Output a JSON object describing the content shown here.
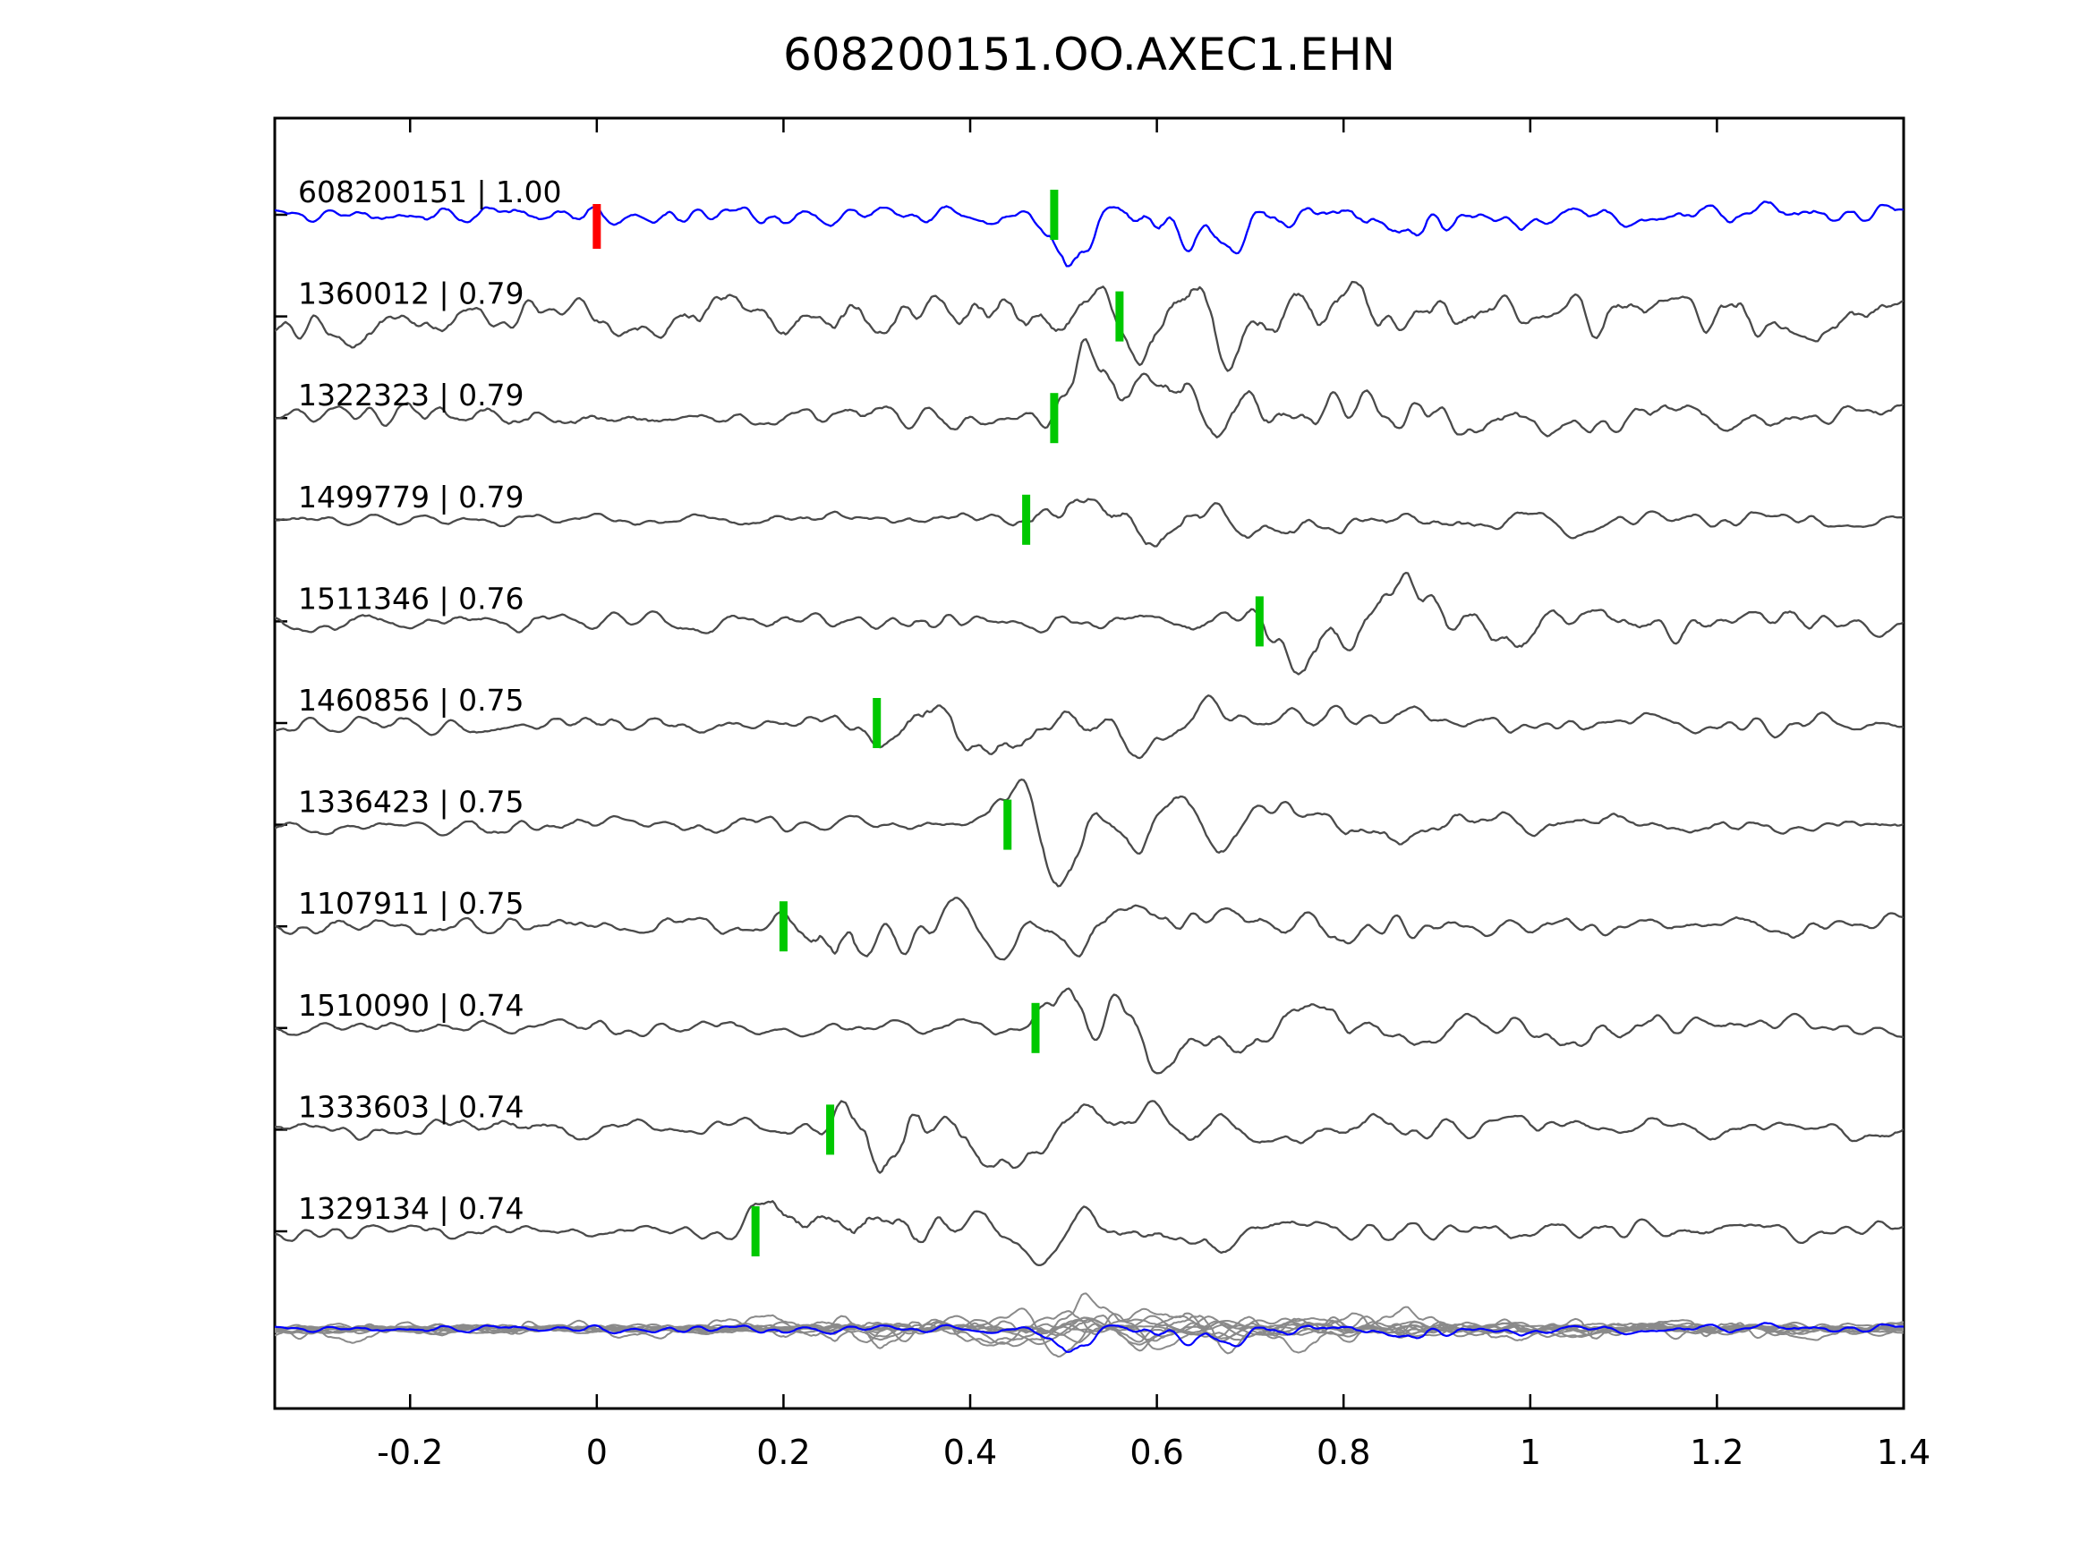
{
  "chart_data": {
    "type": "line",
    "subtype": "seismic-waveform-correlation-plot",
    "title": "608200151.OO.AXEC1.EHN",
    "xlabel": "",
    "ylabel": "",
    "xlim": [
      -0.345,
      1.4
    ],
    "x_ticks": [
      -0.2,
      0,
      0.2,
      0.4,
      0.6,
      0.8,
      1,
      1.2,
      1.4
    ],
    "x_tick_labels": [
      "-0.2",
      "0",
      "0.2",
      "0.4",
      "0.6",
      "0.8",
      "1",
      "1.2",
      "1.4"
    ],
    "grid": false,
    "legend": false,
    "colors": {
      "template_trace": "#0000ff",
      "match_trace": "#4a4a4a",
      "overlay_trace": "#8a8a8a",
      "pick_marker": "#00c800",
      "template_marker": "#ff0000",
      "axis": "#000000",
      "text": "#000000"
    },
    "traces": [
      {
        "id": "608200151",
        "score": "1.00",
        "label": "608200151 | 1.00",
        "pick": 0.49,
        "role": "template"
      },
      {
        "id": "1360012",
        "score": "0.79",
        "label": "1360012 | 0.79",
        "pick": 0.56,
        "role": "match"
      },
      {
        "id": "1322323",
        "score": "0.79",
        "label": "1322323 | 0.79",
        "pick": 0.49,
        "role": "match"
      },
      {
        "id": "1499779",
        "score": "0.79",
        "label": "1499779 | 0.79",
        "pick": 0.46,
        "role": "match"
      },
      {
        "id": "1511346",
        "score": "0.76",
        "label": "1511346 | 0.76",
        "pick": 0.71,
        "role": "match"
      },
      {
        "id": "1460856",
        "score": "0.75",
        "label": "1460856 | 0.75",
        "pick": 0.3,
        "role": "match"
      },
      {
        "id": "1336423",
        "score": "0.75",
        "label": "1336423 | 0.75",
        "pick": 0.44,
        "role": "match"
      },
      {
        "id": "1107911",
        "score": "0.75",
        "label": "1107911 | 0.75",
        "pick": 0.2,
        "role": "match"
      },
      {
        "id": "1510090",
        "score": "0.74",
        "label": "1510090 | 0.74",
        "pick": 0.47,
        "role": "match"
      },
      {
        "id": "1333603",
        "score": "0.74",
        "label": "1333603 | 0.74",
        "pick": 0.25,
        "role": "match"
      },
      {
        "id": "1329134",
        "score": "0.74",
        "label": "1329134 | 0.74",
        "pick": 0.17,
        "role": "match"
      }
    ],
    "template_marker": {
      "trace_id": "608200151",
      "x": 0.0
    },
    "overlay_row": {
      "position": "bottom",
      "content": "all traces overlaid (gray) with template trace (blue)"
    }
  }
}
